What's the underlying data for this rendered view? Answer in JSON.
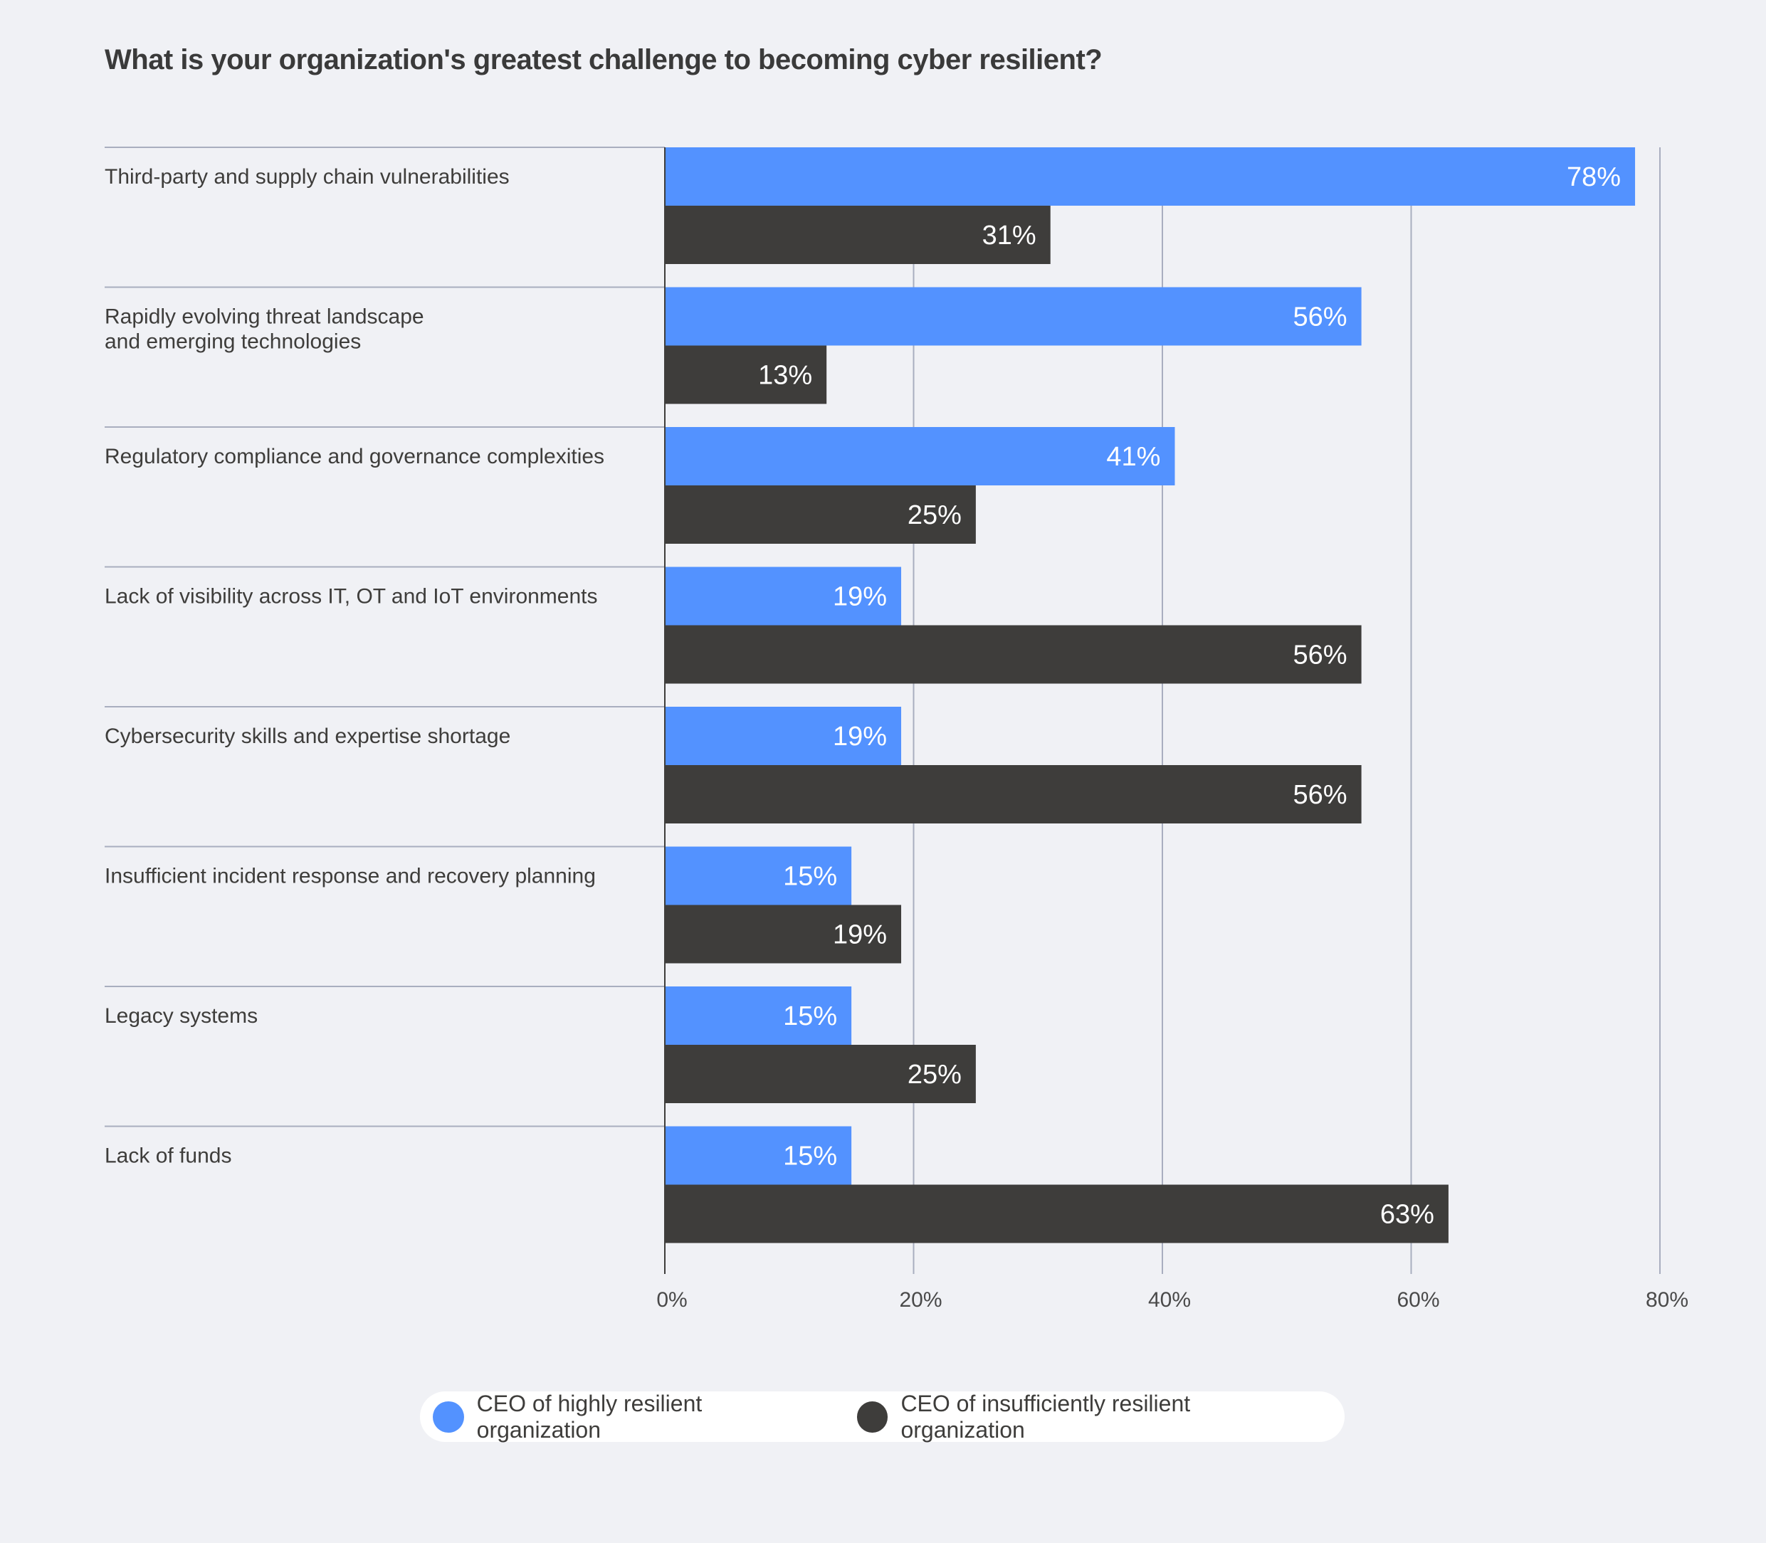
{
  "chart_data": {
    "type": "bar",
    "orientation": "horizontal",
    "title": "What is your organization's greatest challenge to becoming cyber resilient?",
    "categories": [
      [
        "Third-party and supply chain vulnerabilities"
      ],
      [
        "Rapidly evolving threat landscape",
        "and emerging technologies"
      ],
      [
        "Regulatory compliance and governance complexities"
      ],
      [
        "Lack of visibility across IT, OT and IoT environments"
      ],
      [
        "Cybersecurity skills and expertise shortage"
      ],
      [
        "Insufficient incident response and recovery planning"
      ],
      [
        "Legacy systems"
      ],
      [
        "Lack of funds"
      ]
    ],
    "series": [
      {
        "name": "CEO of highly resilient organization",
        "color": "#5392ff",
        "values": [
          78,
          56,
          41,
          19,
          19,
          15,
          15,
          15
        ]
      },
      {
        "name": "CEO of insufficiently resilient organization",
        "color": "#3e3d3b",
        "values": [
          31,
          13,
          25,
          56,
          56,
          19,
          25,
          63
        ]
      }
    ],
    "xlim": [
      0,
      80
    ],
    "xticks": [
      0,
      20,
      40,
      60,
      80
    ],
    "tick_suffix": "%",
    "grid": true,
    "legend_position": "bottom-center"
  }
}
